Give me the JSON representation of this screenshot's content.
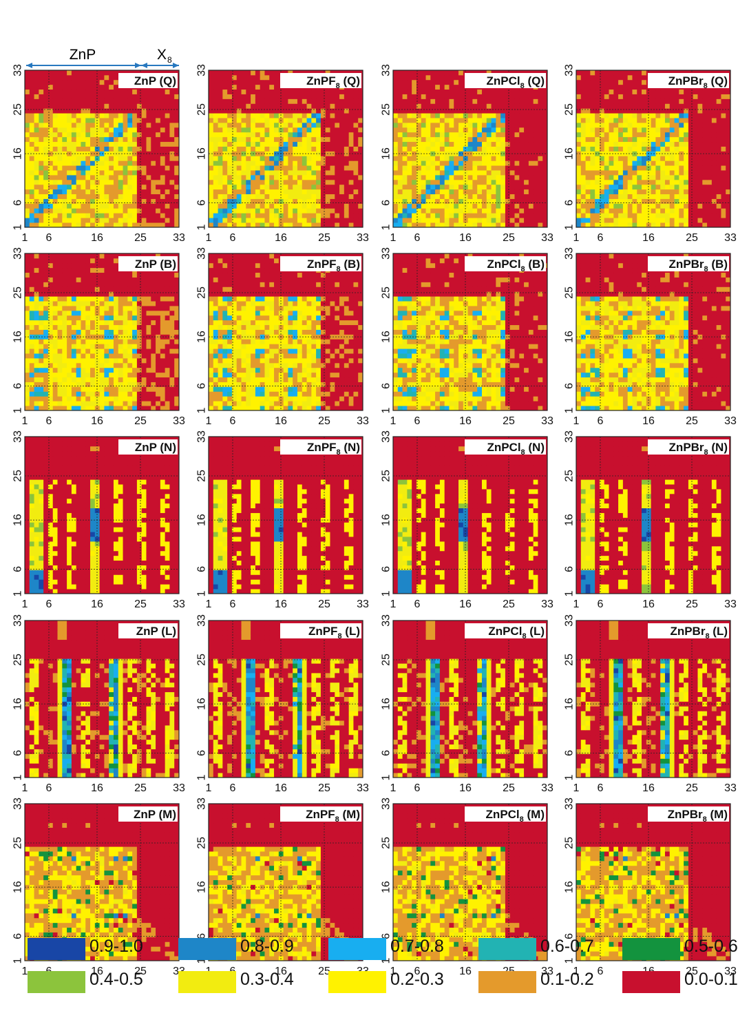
{
  "header": {
    "left_label": "ZnP",
    "right_label_base": "X",
    "right_label_sub": "8"
  },
  "tick_values": [
    "1",
    "6",
    "16",
    "25",
    "33"
  ],
  "rows": [
    {
      "mode": "Q",
      "pattern": "Q"
    },
    {
      "mode": "B",
      "pattern": "B"
    },
    {
      "mode": "N",
      "pattern": "N"
    },
    {
      "mode": "L",
      "pattern": "L"
    },
    {
      "mode": "M",
      "pattern": "M"
    }
  ],
  "columns": [
    {
      "name": "ZnP",
      "halogen": ""
    },
    {
      "name": "ZnPF",
      "halogen": "F"
    },
    {
      "name": "ZnPCl",
      "halogen": "Cl"
    },
    {
      "name": "ZnPBr",
      "halogen": "Br"
    }
  ],
  "panel_titles": [
    [
      "ZnP (Q)",
      "ZnPF8 (Q)",
      "ZnPCl8 (Q)",
      "ZnPBr8 (Q)"
    ],
    [
      "ZnP (B)",
      "ZnPF8 (B)",
      "ZnPCl8 (B)",
      "ZnPBr8 (B)"
    ],
    [
      "ZnP (N)",
      "ZnPF8 (N)",
      "ZnPCl8 (N)",
      "ZnPBr8 (N)"
    ],
    [
      "ZnP (L)",
      "ZnPF8 (L)",
      "ZnPCl8 (L)",
      "ZnPBr8 (L)"
    ],
    [
      "ZnP (M)",
      "ZnPF8 (M)",
      "ZnPCl8 (M)",
      "ZnPBr8 (M)"
    ]
  ],
  "chart_data": {
    "type": "heatmap",
    "description_axes": "atom index 1-33 on both axes; ZnP atoms 1-24, X8 atoms 25-33",
    "x_ticks": [
      1,
      6,
      16,
      25,
      33
    ],
    "y_ticks": [
      1,
      6,
      16,
      25,
      33
    ],
    "xlim": [
      1,
      33
    ],
    "ylim": [
      1,
      33
    ],
    "gridlines_at": [
      6,
      16,
      25
    ],
    "grid": true,
    "legend": [
      {
        "label": "0.9-1.0",
        "color": "#1846a6"
      },
      {
        "label": "0.8-0.9",
        "color": "#1e86c8"
      },
      {
        "label": "0.7-0.8",
        "color": "#18aef0"
      },
      {
        "label": "0.6-0.7",
        "color": "#22b3b3"
      },
      {
        "label": "0.5-0.6",
        "color": "#13933e"
      },
      {
        "label": "0.4-0.5",
        "color": "#8cc43c"
      },
      {
        "label": "0.3-0.4",
        "color": "#f2ec10"
      },
      {
        "label": "0.2-0.3",
        "color": "#fff200"
      },
      {
        "label": "0.1-0.2",
        "color": "#e49a2c"
      },
      {
        "label": "0.0-0.1",
        "color": "#c8102e"
      }
    ],
    "legend_placement": "bottom"
  }
}
